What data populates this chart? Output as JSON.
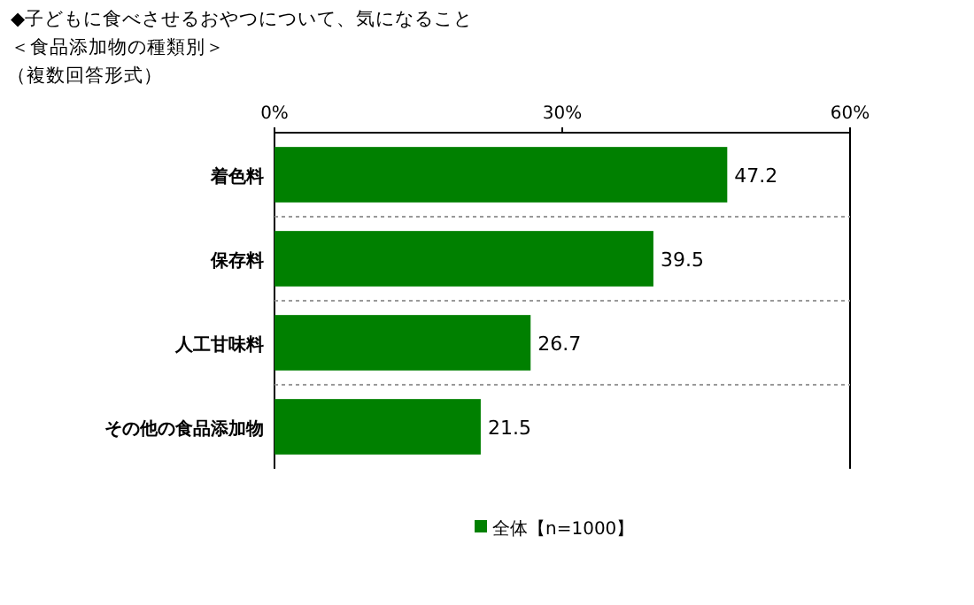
{
  "chart_data": {
    "type": "bar",
    "orientation": "horizontal",
    "title": "◆子どもに食べさせるおやつについて、気になること",
    "subtitle": "＜食品添加物の種類別＞",
    "annotations": [
      "（複数回答形式）"
    ],
    "categories": [
      "着色料",
      "保存料",
      "人工甘味料",
      "その他の食品添加物"
    ],
    "series": [
      {
        "name": "全体【n=1000】",
        "color": "#008000",
        "values": [
          47.2,
          39.5,
          26.7,
          21.5
        ]
      }
    ],
    "xlim": [
      0,
      60
    ],
    "xticks": [
      {
        "value": 0,
        "label": "0%"
      },
      {
        "value": 30,
        "label": "30%"
      },
      {
        "value": 60,
        "label": "60%"
      }
    ],
    "data_labels": true,
    "legend": "bottom"
  }
}
